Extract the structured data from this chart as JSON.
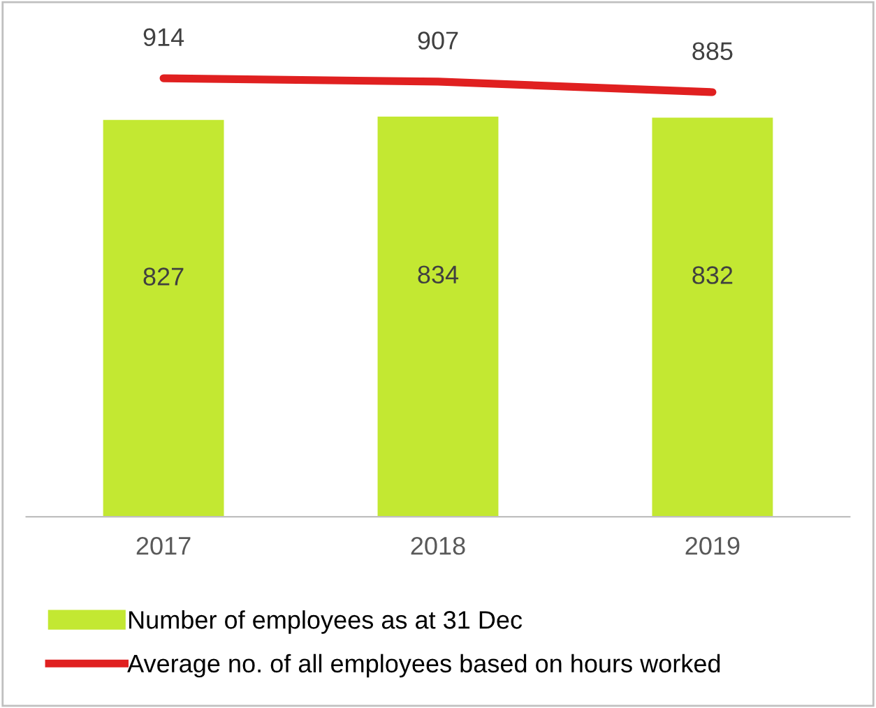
{
  "chart_data": {
    "type": "bar",
    "categories": [
      "2017",
      "2018",
      "2019"
    ],
    "series": [
      {
        "name": "Number of employees as at 31 Dec",
        "color": "#c3e832",
        "values": [
          827,
          834,
          832
        ]
      },
      {
        "name": "Average no. of all employees based on hours worked",
        "type": "line",
        "color": "#e02020",
        "values": [
          914,
          907,
          885
        ]
      }
    ],
    "data_labels": true,
    "legend": "bottom",
    "tick_labels": "x",
    "grid": false,
    "marker": "none",
    "line_style": "solid"
  }
}
